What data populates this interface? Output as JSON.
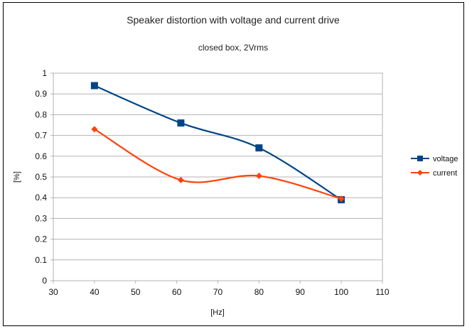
{
  "chart_data": {
    "type": "line",
    "title": "Speaker distortion with voltage and current drive",
    "subtitle": "closed box, 2Vrms",
    "xlabel": "[Hz]",
    "ylabel": "[%]",
    "xlim": [
      30,
      110
    ],
    "ylim": [
      0,
      1
    ],
    "xticks": [
      "30",
      "40",
      "50",
      "60",
      "70",
      "80",
      "90",
      "100",
      "110"
    ],
    "yticks": [
      "0",
      "0.1",
      "0.2",
      "0.3",
      "0.4",
      "0.5",
      "0.6",
      "0.7",
      "0.8",
      "0.9",
      "1"
    ],
    "xtick_values": [
      30,
      40,
      50,
      60,
      70,
      80,
      90,
      100,
      110
    ],
    "ytick_values": [
      0,
      0.1,
      0.2,
      0.3,
      0.4,
      0.5,
      0.6,
      0.7,
      0.8,
      0.9,
      1
    ],
    "grid": "horizontal",
    "legend_position": "right",
    "series": [
      {
        "name": "voltage",
        "color": "#004586",
        "marker": "square",
        "x": [
          40,
          61,
          80,
          100
        ],
        "y": [
          0.94,
          0.76,
          0.64,
          0.39
        ]
      },
      {
        "name": "current",
        "color": "#ff420e",
        "marker": "diamond",
        "x": [
          40,
          61,
          80,
          100
        ],
        "y": [
          0.73,
          0.485,
          0.505,
          0.395
        ]
      }
    ]
  }
}
